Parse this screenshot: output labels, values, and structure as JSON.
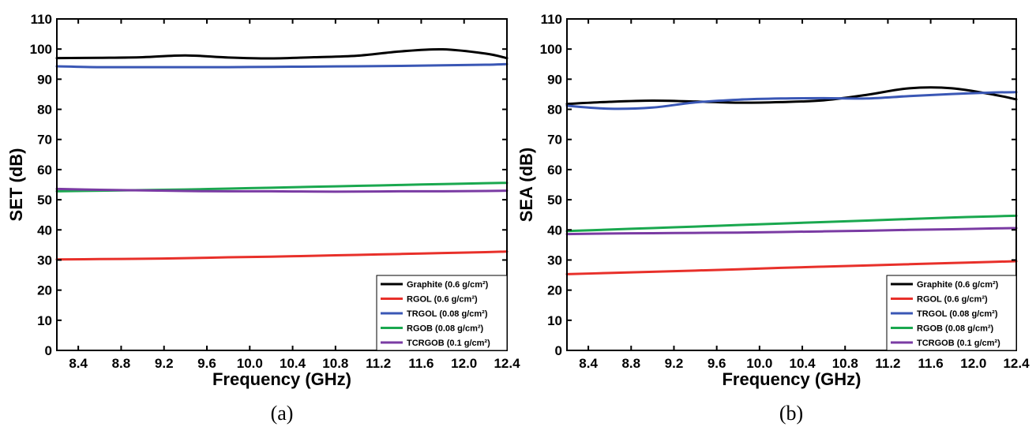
{
  "chart_data": [
    {
      "type": "line",
      "panel_label": "(a)",
      "xlabel": "Frequency (GHz)",
      "ylabel": "SET (dB)",
      "xlim": [
        8.2,
        12.4
      ],
      "ylim": [
        0,
        110
      ],
      "xticks": [
        "8.4",
        "8.8",
        "9.2",
        "9.6",
        "10.0",
        "10.4",
        "10.8",
        "11.2",
        "11.6",
        "12.0",
        "12.4"
      ],
      "yticks": [
        "0",
        "10",
        "20",
        "30",
        "40",
        "50",
        "60",
        "70",
        "80",
        "90",
        "100",
        "110"
      ],
      "grid": false,
      "legend_position": "bottom-right",
      "x": [
        8.2,
        8.6,
        9.0,
        9.4,
        9.8,
        10.2,
        10.6,
        11.0,
        11.4,
        11.8,
        12.2,
        12.4
      ],
      "series": [
        {
          "name": "Graphite",
          "unit": "(0.6 g/cm²)",
          "color": "#000000",
          "values": [
            97.0,
            97.1,
            97.3,
            97.9,
            97.2,
            96.9,
            97.3,
            97.8,
            99.2,
            99.9,
            98.5,
            97.0
          ]
        },
        {
          "name": "RGOL",
          "unit": "(0.6 g/cm²)",
          "color": "#e8302a",
          "values": [
            30.2,
            30.3,
            30.4,
            30.6,
            30.9,
            31.1,
            31.4,
            31.7,
            32.0,
            32.3,
            32.6,
            32.8
          ]
        },
        {
          "name": "TRGOL",
          "unit": "(0.08 g/cm²)",
          "color": "#3a57b5",
          "values": [
            94.3,
            94.0,
            94.0,
            94.0,
            94.0,
            94.1,
            94.2,
            94.3,
            94.4,
            94.6,
            94.8,
            95.0
          ]
        },
        {
          "name": "RGOB",
          "unit": "(0.08 g/cm²)",
          "color": "#1aa84f",
          "values": [
            52.8,
            53.0,
            53.2,
            53.4,
            53.7,
            54.0,
            54.3,
            54.6,
            54.9,
            55.2,
            55.5,
            55.6
          ]
        },
        {
          "name": "TCRGOB",
          "unit": "(0.1 g/cm²)",
          "color": "#7a3ba3",
          "values": [
            53.6,
            53.3,
            53.1,
            52.9,
            52.8,
            52.8,
            52.7,
            52.7,
            52.8,
            52.8,
            52.9,
            53.0
          ]
        }
      ]
    },
    {
      "type": "line",
      "panel_label": "(b)",
      "xlabel": "Frequency (GHz)",
      "ylabel": "SEA (dB)",
      "xlim": [
        8.2,
        12.4
      ],
      "ylim": [
        0,
        110
      ],
      "xticks": [
        "8.4",
        "8.8",
        "9.2",
        "9.6",
        "10.0",
        "10.4",
        "10.8",
        "11.2",
        "11.6",
        "12.0",
        "12.4"
      ],
      "yticks": [
        "0",
        "10",
        "20",
        "30",
        "40",
        "50",
        "60",
        "70",
        "80",
        "90",
        "100",
        "110"
      ],
      "grid": false,
      "legend_position": "bottom-right",
      "x": [
        8.2,
        8.6,
        9.0,
        9.4,
        9.8,
        10.2,
        10.6,
        11.0,
        11.4,
        11.8,
        12.2,
        12.4
      ],
      "series": [
        {
          "name": "Graphite",
          "unit": "(0.6 g/cm²)",
          "color": "#000000",
          "values": [
            81.8,
            82.5,
            82.9,
            82.6,
            82.2,
            82.4,
            83.0,
            84.8,
            87.0,
            87.0,
            84.8,
            83.3
          ]
        },
        {
          "name": "RGOL",
          "unit": "(0.6 g/cm²)",
          "color": "#e8302a",
          "values": [
            25.3,
            25.7,
            26.1,
            26.5,
            26.9,
            27.4,
            27.8,
            28.2,
            28.6,
            29.0,
            29.4,
            29.6
          ]
        },
        {
          "name": "TRGOL",
          "unit": "(0.08 g/cm²)",
          "color": "#3a57b5",
          "values": [
            81.2,
            80.2,
            80.6,
            82.3,
            83.2,
            83.6,
            83.7,
            83.6,
            84.4,
            85.1,
            85.6,
            85.7
          ]
        },
        {
          "name": "RGOB",
          "unit": "(0.08 g/cm²)",
          "color": "#1aa84f",
          "values": [
            39.6,
            40.1,
            40.6,
            41.1,
            41.6,
            42.1,
            42.6,
            43.1,
            43.6,
            44.1,
            44.5,
            44.7
          ]
        },
        {
          "name": "TCRGOB",
          "unit": "(0.1 g/cm²)",
          "color": "#7a3ba3",
          "values": [
            38.6,
            38.8,
            38.9,
            39.0,
            39.1,
            39.3,
            39.5,
            39.7,
            40.0,
            40.2,
            40.5,
            40.6
          ]
        }
      ]
    }
  ]
}
